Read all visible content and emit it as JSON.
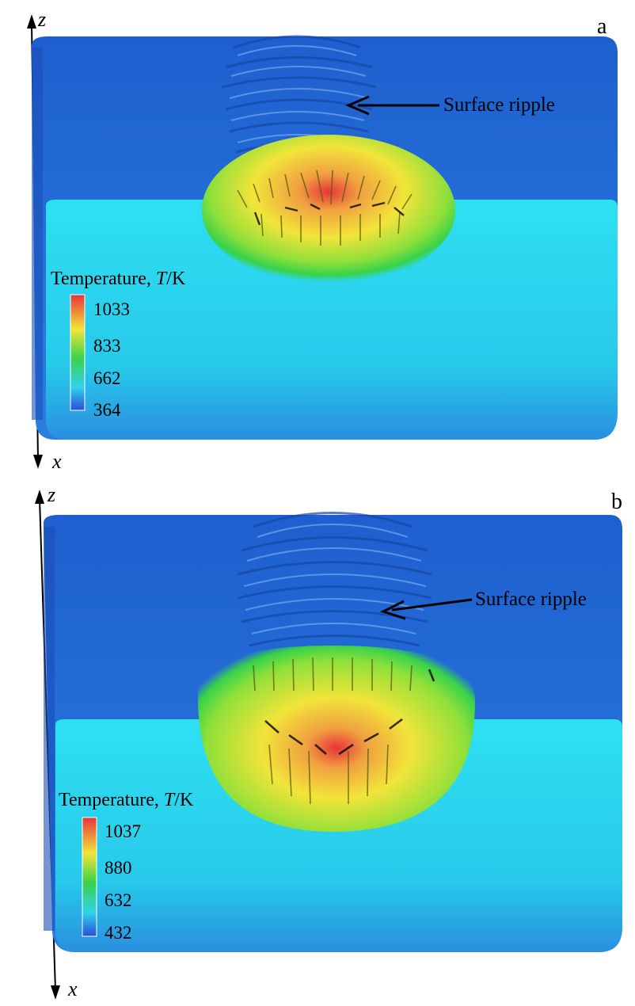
{
  "axes": {
    "vertical": "z",
    "depth": "x"
  },
  "colors": {
    "top_face": "#1f6fd4",
    "front_face": "#2ad3ea",
    "cold": "#2a4fd6",
    "cyan": "#30d2ec",
    "green": "#39d24a",
    "yellow": "#f2e43a",
    "hot": "#e8343a"
  },
  "panels": [
    {
      "letter": "a",
      "annotation": "Surface ripple",
      "legend": {
        "title_prefix": "Temperature, ",
        "title_symbol": "T",
        "title_unit": "/K",
        "ticks": [
          "1033",
          "833",
          "662",
          "364"
        ]
      }
    },
    {
      "letter": "b",
      "annotation": "Surface ripple",
      "legend": {
        "title_prefix": "Temperature, ",
        "title_symbol": "T",
        "title_unit": "/K",
        "ticks": [
          "1037",
          "880",
          "632",
          "432"
        ]
      }
    }
  ]
}
